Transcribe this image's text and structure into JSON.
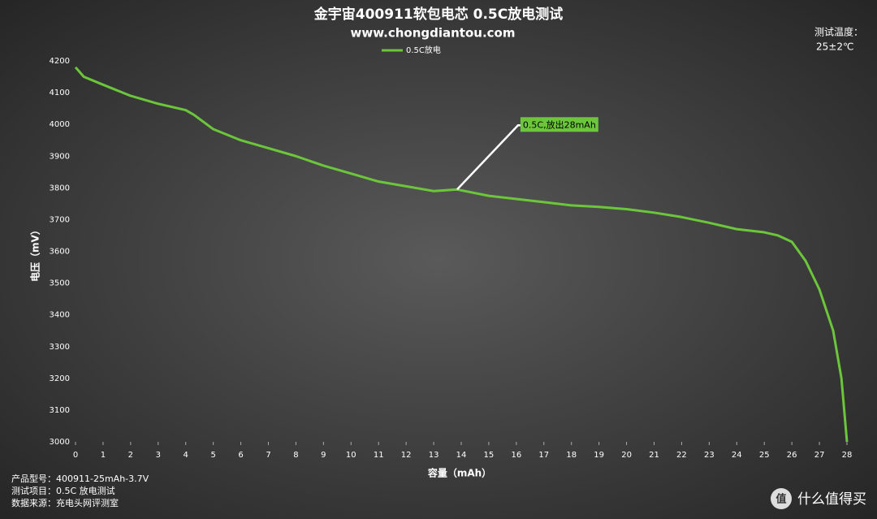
{
  "chart_data": {
    "type": "line",
    "title": "金宇宙400911软包电芯 0.5C放电测试",
    "subtitle": "www.chongdiantou.com",
    "x_label": "容量（mAh）",
    "y_label": "电压（mV）",
    "x": [
      0,
      0.3,
      1,
      2,
      3,
      4,
      4.3,
      5,
      6,
      7,
      8,
      9,
      10,
      11,
      12,
      13,
      13.85,
      15,
      16,
      17,
      18,
      19,
      20,
      21,
      22,
      23,
      24,
      25,
      25.5,
      26,
      26.5,
      27,
      27.5,
      27.8,
      28
    ],
    "series": [
      {
        "name": "0.5C放电",
        "color": "#6cc63c",
        "values": [
          4180,
          4150,
          4125,
          4090,
          4065,
          4045,
          4030,
          3985,
          3950,
          3925,
          3900,
          3870,
          3845,
          3820,
          3805,
          3790,
          3795,
          3775,
          3765,
          3755,
          3745,
          3740,
          3733,
          3722,
          3708,
          3690,
          3670,
          3660,
          3650,
          3630,
          3570,
          3480,
          3350,
          3200,
          3000
        ]
      }
    ],
    "xlim": [
      0,
      28
    ],
    "xticks": [
      0,
      1,
      2,
      3,
      4,
      5,
      6,
      7,
      8,
      9,
      10,
      11,
      12,
      13,
      14,
      15,
      16,
      17,
      18,
      19,
      20,
      21,
      22,
      23,
      24,
      25,
      26,
      27,
      28
    ],
    "ylim": [
      3000,
      4200
    ],
    "yticks": [
      3000,
      3100,
      3200,
      3300,
      3400,
      3500,
      3600,
      3700,
      3800,
      3900,
      4000,
      4100,
      4200
    ],
    "grid": false,
    "legend": "top",
    "annotations": [
      {
        "text": "0.5C,放出28mAh",
        "x": 13.85,
        "y": 3795
      }
    ],
    "note": [
      "测试温度：",
      "25±2℃"
    ],
    "footer": [
      "产品型号：400911-25mAh-3.7V",
      "测试项目：0.5C 放电测试",
      "数据来源：充电头网评测室"
    ],
    "watermark": [
      "值",
      "什么值得买"
    ]
  }
}
